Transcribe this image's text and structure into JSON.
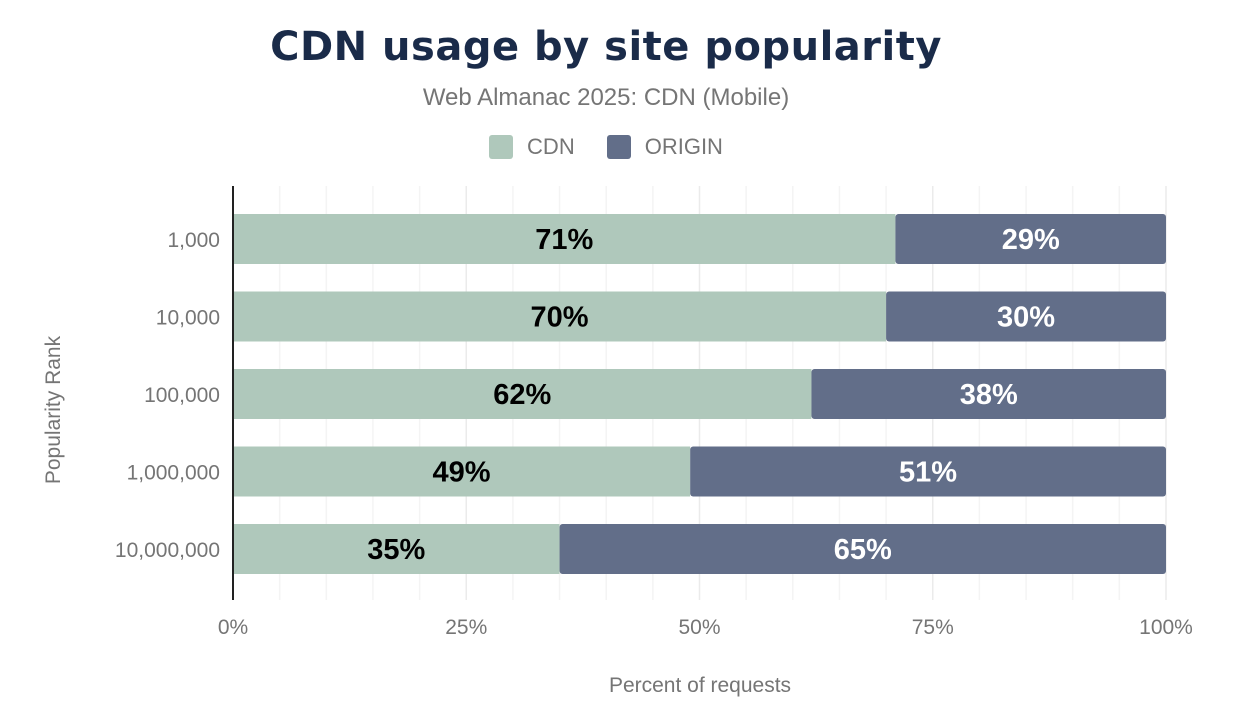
{
  "chart_data": {
    "type": "bar",
    "orientation": "horizontal",
    "stacked": true,
    "title": "CDN usage by site popularity",
    "subtitle": "Web Almanac 2025: CDN  (Mobile)",
    "xlabel": "Percent of requests",
    "ylabel": "Popularity Rank",
    "categories": [
      "1,000",
      "10,000",
      "100,000",
      "1,000,000",
      "10,000,000"
    ],
    "series": [
      {
        "name": "CDN",
        "color": "#afc8bb",
        "label_color": "#000000",
        "values": [
          71,
          70,
          62,
          49,
          35
        ]
      },
      {
        "name": "ORIGIN",
        "color": "#626e89",
        "label_color": "#ffffff",
        "values": [
          29,
          30,
          38,
          51,
          65
        ]
      }
    ],
    "xlim": [
      0,
      100
    ],
    "xticks": [
      "0%",
      "25%",
      "50%",
      "75%",
      "100%"
    ],
    "grid": true,
    "legend_position": "top"
  }
}
